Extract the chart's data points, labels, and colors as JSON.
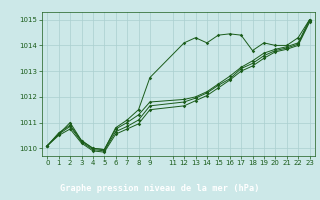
{
  "title": "Graphe pression niveau de la mer (hPa)",
  "bg_color": "#cce8e8",
  "plot_bg_color": "#cce8e8",
  "line_color": "#1a5c1a",
  "grid_color": "#aacfcf",
  "label_bar_color": "#2d6b2d",
  "label_text_color": "#ffffff",
  "axis_text_color": "#1a5c1a",
  "ylim": [
    1009.7,
    1015.3
  ],
  "xlim": [
    -0.5,
    23.5
  ],
  "yticks": [
    1010,
    1011,
    1012,
    1013,
    1014,
    1015
  ],
  "xticks": [
    0,
    1,
    2,
    3,
    4,
    5,
    6,
    7,
    8,
    9,
    11,
    12,
    13,
    14,
    15,
    16,
    17,
    18,
    19,
    20,
    21,
    22,
    23
  ],
  "series": [
    [
      1010.1,
      1010.6,
      1010.9,
      1010.3,
      1010.0,
      1009.95,
      1010.8,
      1011.1,
      1011.5,
      1012.75,
      null,
      1014.1,
      1014.3,
      1014.1,
      1014.4,
      1014.45,
      1014.4,
      1013.8,
      1014.1,
      1014.0,
      1014.0,
      1014.3,
      1015.0
    ],
    [
      1010.1,
      1010.55,
      1011.0,
      1010.3,
      1010.0,
      1009.95,
      1010.75,
      1011.0,
      1011.3,
      1011.8,
      null,
      1011.9,
      1012.0,
      1012.2,
      1012.5,
      1012.8,
      1013.15,
      1013.4,
      1013.7,
      1013.85,
      1013.95,
      1014.1,
      1015.0
    ],
    [
      1010.1,
      1010.55,
      1010.85,
      1010.25,
      1009.95,
      1009.9,
      1010.65,
      1010.85,
      1011.1,
      1011.65,
      null,
      1011.8,
      1011.95,
      1012.15,
      1012.45,
      1012.7,
      1013.1,
      1013.3,
      1013.6,
      1013.8,
      1013.9,
      1014.05,
      1014.95
    ],
    [
      1010.1,
      1010.5,
      1010.75,
      1010.2,
      1009.9,
      1009.85,
      1010.55,
      1010.75,
      1010.95,
      1011.5,
      null,
      1011.65,
      1011.85,
      1012.05,
      1012.35,
      1012.65,
      1013.0,
      1013.2,
      1013.5,
      1013.75,
      1013.85,
      1014.0,
      1014.9
    ]
  ],
  "x_hours": [
    0,
    1,
    2,
    3,
    4,
    5,
    6,
    7,
    8,
    9,
    11,
    12,
    13,
    14,
    15,
    16,
    17,
    18,
    19,
    20,
    21,
    22,
    23
  ],
  "tick_fontsize": 5.0,
  "label_fontsize": 6.2
}
